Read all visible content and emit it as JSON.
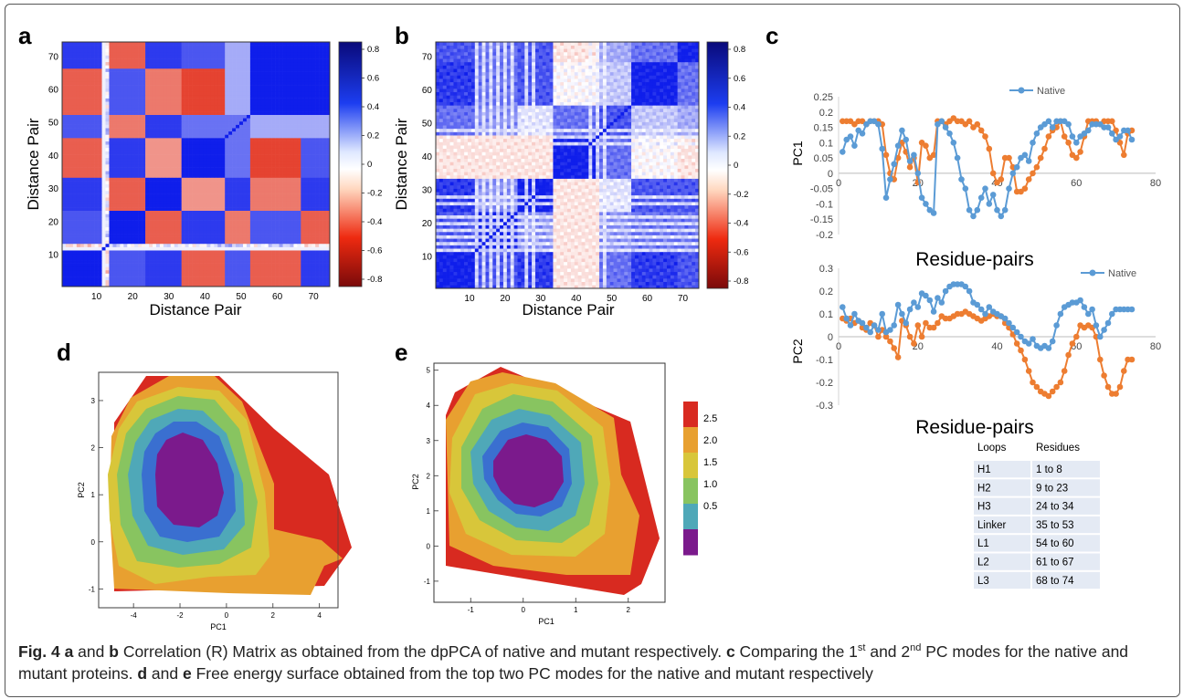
{
  "panels": {
    "a": {
      "letter": "a",
      "xlabel": "Distance Pair",
      "ylabel": "Distance Pair",
      "xticks": [
        "10",
        "20",
        "30",
        "40",
        "50",
        "60",
        "70"
      ],
      "yticks": [
        "10",
        "20",
        "30",
        "40",
        "50",
        "60",
        "70"
      ],
      "colorbar_ticks": [
        "0.8",
        "0.6",
        "0.4",
        "0.2",
        "0",
        "-0.2",
        "-0.4",
        "-0.6",
        "-0.8"
      ]
    },
    "b": {
      "letter": "b",
      "xlabel": "Distance Pair",
      "ylabel": "Distance Pair",
      "xticks": [
        "10",
        "20",
        "30",
        "40",
        "50",
        "60",
        "70"
      ],
      "yticks": [
        "10",
        "20",
        "30",
        "40",
        "50",
        "60",
        "70"
      ],
      "colorbar_ticks": [
        "0.8",
        "0.6",
        "0.4",
        "0.2",
        "0",
        "-0.2",
        "-0.4",
        "-0.6",
        "-0.8"
      ]
    },
    "c": {
      "letter": "c",
      "top": {
        "ylabel": "PC1",
        "xlabel": "Residue-pairs",
        "legend": "Native",
        "yticks": [
          "0.25",
          "0.2",
          "0.15",
          "0.1",
          "0.05",
          "0",
          "-0.05",
          "-0.1",
          "-0.15",
          "-0.2"
        ],
        "xticks": [
          "0",
          "20",
          "40",
          "60",
          "80"
        ]
      },
      "bottom": {
        "ylabel": "PC2",
        "xlabel": "Residue-pairs",
        "legend": "Native",
        "yticks": [
          "0.3",
          "0.2",
          "0.1",
          "0",
          "-0.1",
          "-0.2",
          "-0.3"
        ],
        "xticks": [
          "0",
          "20",
          "40",
          "60",
          "80"
        ]
      },
      "table": {
        "headers": [
          "Loops",
          "Residues"
        ],
        "rows": [
          [
            "H1",
            "1 to 8"
          ],
          [
            "H2",
            "9 to 23"
          ],
          [
            "H3",
            "24 to 34"
          ],
          [
            "Linker",
            "35 to 53"
          ],
          [
            "L1",
            "54 to 60"
          ],
          [
            "L2",
            "61 to 67"
          ],
          [
            "L3",
            "68 to 74"
          ]
        ]
      }
    },
    "d": {
      "letter": "d",
      "xlabel": "PC1",
      "ylabel": "PC2",
      "xticks": [
        "-4",
        "-2",
        "0",
        "2",
        "4"
      ],
      "yticks": [
        "3",
        "2",
        "1",
        "0",
        "-1"
      ]
    },
    "e": {
      "letter": "e",
      "xlabel": "PC1",
      "ylabel": "PC2",
      "xticks": [
        "-1",
        "0",
        "1",
        "2"
      ],
      "yticks": [
        "5",
        "4",
        "3",
        "2",
        "1",
        "0",
        "-1"
      ],
      "colorbar_ticks": [
        "2.5",
        "2.0",
        "1.5",
        "1.0",
        "0.5"
      ]
    }
  },
  "colors": {
    "native": "#5b9bd5",
    "mutant": "#ed7d31",
    "fes": [
      "#7b1a8c",
      "#3a6fd0",
      "#4fa8b8",
      "#88c460",
      "#d8c63a",
      "#e8a030",
      "#d82a20"
    ]
  },
  "caption": {
    "fig_label": "Fig. 4",
    "p1_bold": "a",
    "p1_and": " and ",
    "p1_bold2": "b",
    "p1_text": " Correlation (R) Matrix as obtained from the dpPCA of native and mutant respectively. ",
    "p2_bold": "c",
    "p2_text_a": " Comparing the 1",
    "p2_sup1": "st",
    "p2_text_b": " and 2",
    "p2_sup2": "nd",
    "p2_text_c": " PC modes for the native and mutant proteins. ",
    "p3_bold": "d",
    "p3_and": " and ",
    "p3_bold2": "e",
    "p3_text": " Free energy surface obtained from the top two PC modes for the native and mutant respectively"
  },
  "chart_data": [
    {
      "panel": "c-top",
      "type": "line",
      "xlabel": "Residue-pairs",
      "ylabel": "PC1",
      "xlim": [
        0,
        80
      ],
      "ylim": [
        -0.2,
        0.25
      ],
      "series": [
        {
          "name": "Native",
          "x": [
            1,
            2,
            3,
            4,
            5,
            6,
            7,
            8,
            9,
            10,
            11,
            12,
            13,
            14,
            15,
            16,
            17,
            18,
            19,
            20,
            21,
            22,
            23,
            24,
            25,
            26,
            27,
            28,
            29,
            30,
            31,
            32,
            33,
            34,
            35,
            36,
            37,
            38,
            39,
            40,
            41,
            42,
            43,
            44,
            45,
            46,
            47,
            48,
            49,
            50,
            51,
            52,
            53,
            54,
            55,
            56,
            57,
            58,
            59,
            60,
            61,
            62,
            63,
            64,
            65,
            66,
            67,
            68,
            69,
            70,
            71,
            72,
            73,
            74
          ],
          "values": [
            0.07,
            0.11,
            0.12,
            0.09,
            0.14,
            0.13,
            0.16,
            0.17,
            0.17,
            0.16,
            0.08,
            -0.08,
            -0.02,
            0.03,
            0.09,
            0.14,
            0.11,
            0.04,
            0.06,
            0.0,
            -0.08,
            -0.1,
            -0.12,
            -0.13,
            0.16,
            0.17,
            0.15,
            0.13,
            0.1,
            0.05,
            -0.02,
            -0.05,
            -0.12,
            -0.14,
            -0.12,
            -0.08,
            -0.05,
            -0.1,
            -0.07,
            -0.12,
            -0.14,
            -0.12,
            -0.05,
            0.0,
            0.02,
            0.05,
            0.06,
            0.04,
            0.1,
            0.13,
            0.15,
            0.16,
            0.17,
            0.15,
            0.17,
            0.17,
            0.17,
            0.16,
            0.12,
            0.1,
            0.12,
            0.13,
            0.14,
            0.16,
            0.16,
            0.16,
            0.15,
            0.15,
            0.13,
            0.11,
            0.12,
            0.14,
            0.14,
            0.11
          ]
        },
        {
          "name": "",
          "x": [
            1,
            2,
            3,
            4,
            5,
            6,
            7,
            8,
            9,
            10,
            11,
            12,
            13,
            14,
            15,
            16,
            17,
            18,
            19,
            20,
            21,
            22,
            23,
            24,
            25,
            26,
            27,
            28,
            29,
            30,
            31,
            32,
            33,
            34,
            35,
            36,
            37,
            38,
            39,
            40,
            41,
            42,
            43,
            44,
            45,
            46,
            47,
            48,
            49,
            50,
            51,
            52,
            53,
            54,
            55,
            56,
            57,
            58,
            59,
            60,
            61,
            62,
            63,
            64,
            65,
            66,
            67,
            68,
            69,
            70,
            71,
            72,
            73,
            74
          ],
          "values": [
            0.17,
            0.17,
            0.17,
            0.16,
            0.17,
            0.17,
            0.16,
            0.17,
            0.17,
            0.17,
            0.16,
            0.06,
            0.0,
            -0.02,
            0.05,
            0.1,
            0.07,
            0.02,
            0.05,
            -0.03,
            0.1,
            0.09,
            0.05,
            0.06,
            0.17,
            0.17,
            0.16,
            0.17,
            0.18,
            0.17,
            0.17,
            0.16,
            0.17,
            0.15,
            0.16,
            0.14,
            0.12,
            0.08,
            0.0,
            -0.03,
            -0.02,
            0.05,
            0.05,
            0.02,
            -0.06,
            -0.06,
            -0.05,
            -0.02,
            0.0,
            0.02,
            0.05,
            0.08,
            0.12,
            0.14,
            0.15,
            0.17,
            0.12,
            0.1,
            0.06,
            0.05,
            0.07,
            0.12,
            0.17,
            0.17,
            0.17,
            0.16,
            0.17,
            0.17,
            0.17,
            0.14,
            0.1,
            0.06,
            0.13,
            0.14
          ]
        }
      ]
    },
    {
      "panel": "c-bottom",
      "type": "line",
      "xlabel": "Residue-pairs",
      "ylabel": "PC2",
      "xlim": [
        0,
        80
      ],
      "ylim": [
        -0.3,
        0.3
      ],
      "series": [
        {
          "name": "Native",
          "x": [
            1,
            2,
            3,
            4,
            5,
            6,
            7,
            8,
            9,
            10,
            11,
            12,
            13,
            14,
            15,
            16,
            17,
            18,
            19,
            20,
            21,
            22,
            23,
            24,
            25,
            26,
            27,
            28,
            29,
            30,
            31,
            32,
            33,
            34,
            35,
            36,
            37,
            38,
            39,
            40,
            41,
            42,
            43,
            44,
            45,
            46,
            47,
            48,
            49,
            50,
            51,
            52,
            53,
            54,
            55,
            56,
            57,
            58,
            59,
            60,
            61,
            62,
            63,
            64,
            65,
            66,
            67,
            68,
            69,
            70,
            71,
            72,
            73,
            74
          ],
          "values": [
            0.13,
            0.08,
            0.05,
            0.1,
            0.07,
            0.06,
            0.04,
            0.02,
            0.05,
            0.03,
            0.1,
            0.02,
            0.03,
            0.05,
            0.14,
            0.1,
            0.06,
            0.12,
            0.15,
            0.13,
            0.19,
            0.18,
            0.16,
            0.11,
            0.17,
            0.15,
            0.2,
            0.22,
            0.23,
            0.23,
            0.23,
            0.22,
            0.2,
            0.15,
            0.14,
            0.12,
            0.1,
            0.13,
            0.11,
            0.1,
            0.09,
            0.08,
            0.06,
            0.04,
            0.02,
            0.0,
            -0.02,
            -0.03,
            -0.01,
            -0.04,
            -0.05,
            -0.04,
            -0.05,
            -0.02,
            0.05,
            0.1,
            0.13,
            0.14,
            0.15,
            0.15,
            0.16,
            0.13,
            0.1,
            0.12,
            0.05,
            0.0,
            0.03,
            0.06,
            0.1,
            0.12,
            0.12,
            0.12,
            0.12,
            0.12
          ]
        },
        {
          "name": "",
          "x": [
            1,
            2,
            3,
            4,
            5,
            6,
            7,
            8,
            9,
            10,
            11,
            12,
            13,
            14,
            15,
            16,
            17,
            18,
            19,
            20,
            21,
            22,
            23,
            24,
            25,
            26,
            27,
            28,
            29,
            30,
            31,
            32,
            33,
            34,
            35,
            36,
            37,
            38,
            39,
            40,
            41,
            42,
            43,
            44,
            45,
            46,
            47,
            48,
            49,
            50,
            51,
            52,
            53,
            54,
            55,
            56,
            57,
            58,
            59,
            60,
            61,
            62,
            63,
            64,
            65,
            66,
            67,
            68,
            69,
            70,
            71,
            72,
            73,
            74
          ],
          "values": [
            0.08,
            0.07,
            0.08,
            0.06,
            0.07,
            0.04,
            0.03,
            0.06,
            0.05,
            0.0,
            0.03,
            0.0,
            -0.02,
            -0.05,
            -0.09,
            0.07,
            0.05,
            0.0,
            -0.03,
            0.05,
            0.0,
            0.06,
            0.04,
            0.04,
            0.06,
            0.09,
            0.08,
            0.08,
            0.09,
            0.1,
            0.1,
            0.11,
            0.1,
            0.09,
            0.08,
            0.07,
            0.08,
            0.09,
            0.1,
            0.09,
            0.09,
            0.06,
            0.04,
            0.01,
            -0.03,
            -0.06,
            -0.1,
            -0.15,
            -0.2,
            -0.22,
            -0.24,
            -0.25,
            -0.26,
            -0.24,
            -0.22,
            -0.2,
            -0.15,
            -0.08,
            -0.03,
            0.0,
            0.05,
            0.04,
            0.05,
            0.04,
            0.0,
            -0.1,
            -0.17,
            -0.22,
            -0.25,
            -0.25,
            -0.22,
            -0.15,
            -0.1,
            -0.1
          ]
        }
      ]
    }
  ]
}
